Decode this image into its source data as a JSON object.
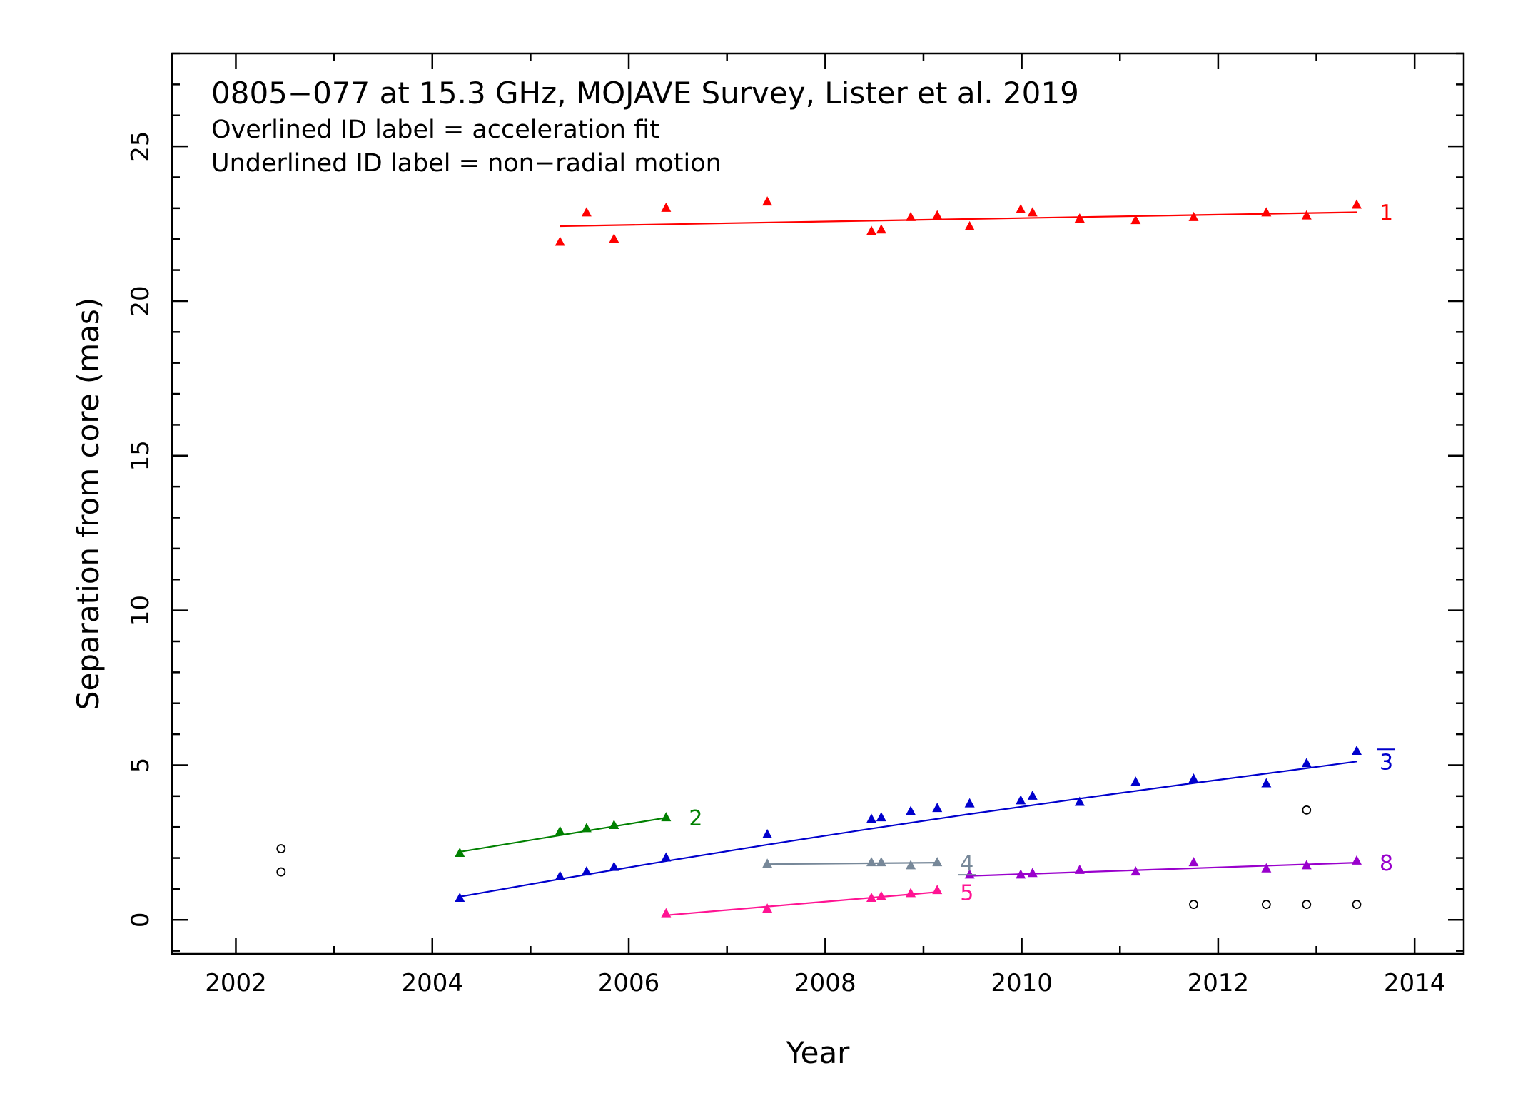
{
  "chart_data": {
    "type": "scatter",
    "header": {
      "title": "0805−077 at 15.3 GHz, MOJAVE Survey, Lister et al. 2019",
      "line1": "Overlined ID label = acceleration fit",
      "line2": "Underlined ID label = non−radial motion"
    },
    "xlabel": "Year",
    "ylabel": "Separation from core (mas)",
    "xlim": [
      2001.35,
      2014.5
    ],
    "ylim": [
      -1.1,
      28.0
    ],
    "xticks": [
      2002,
      2004,
      2006,
      2008,
      2010,
      2012,
      2014
    ],
    "yticks": [
      0,
      5,
      10,
      15,
      20,
      25
    ],
    "grid": false,
    "series": [
      {
        "name": "1",
        "color": "#ff0000",
        "label_style": "plain",
        "x": [
          2005.3,
          2005.57,
          2005.85,
          2006.38,
          2007.41,
          2008.47,
          2008.57,
          2008.87,
          2009.14,
          2009.47,
          2009.99,
          2010.11,
          2010.59,
          2011.16,
          2011.75,
          2012.49,
          2012.9,
          2013.41
        ],
        "y": [
          21.9,
          22.85,
          22.0,
          23.0,
          23.2,
          22.25,
          22.3,
          22.7,
          22.75,
          22.4,
          22.95,
          22.85,
          22.65,
          22.6,
          22.7,
          22.85,
          22.75,
          23.1
        ],
        "fit": [
          [
            2005.3,
            22.42
          ],
          [
            2013.41,
            22.87
          ]
        ]
      },
      {
        "name": "2",
        "color": "#008000",
        "label_style": "plain",
        "x": [
          2004.28,
          2005.3,
          2005.57,
          2005.85,
          2006.38
        ],
        "y": [
          2.15,
          2.85,
          2.95,
          3.05,
          3.3
        ],
        "fit": [
          [
            2004.28,
            2.2
          ],
          [
            2006.38,
            3.3
          ]
        ]
      },
      {
        "name": "3",
        "color": "#0000cc",
        "label_style": "overline",
        "x": [
          2004.28,
          2005.3,
          2005.57,
          2005.85,
          2006.38,
          2007.41,
          2008.47,
          2008.57,
          2008.87,
          2009.14,
          2009.47,
          2009.99,
          2010.11,
          2010.59,
          2011.16,
          2011.75,
          2012.49,
          2012.9,
          2013.41
        ],
        "y": [
          0.7,
          1.4,
          1.55,
          1.7,
          2.0,
          2.75,
          3.25,
          3.3,
          3.5,
          3.6,
          3.75,
          3.85,
          4.0,
          3.8,
          4.45,
          4.55,
          4.4,
          5.05,
          5.45
        ],
        "fit": [
          [
            2004.28,
            0.75
          ],
          [
            2005.3,
            1.32
          ],
          [
            2006.38,
            1.9
          ],
          [
            2007.41,
            2.43
          ],
          [
            2008.47,
            2.95
          ],
          [
            2009.47,
            3.42
          ],
          [
            2010.59,
            3.92
          ],
          [
            2011.75,
            4.42
          ],
          [
            2012.9,
            4.9
          ],
          [
            2013.41,
            5.12
          ]
        ]
      },
      {
        "name": "4",
        "color": "#778899",
        "label_style": "underline",
        "x": [
          2007.41,
          2008.47,
          2008.57,
          2008.87,
          2009.14
        ],
        "y": [
          1.8,
          1.85,
          1.85,
          1.75,
          1.85
        ],
        "fit": [
          [
            2007.41,
            1.8
          ],
          [
            2009.14,
            1.85
          ]
        ]
      },
      {
        "name": "5",
        "color": "#ff1493",
        "label_style": "plain",
        "x": [
          2006.38,
          2007.41,
          2008.47,
          2008.57,
          2008.87,
          2009.14
        ],
        "y": [
          0.2,
          0.35,
          0.7,
          0.75,
          0.85,
          0.95
        ],
        "fit": [
          [
            2006.38,
            0.15
          ],
          [
            2009.14,
            0.9
          ]
        ]
      },
      {
        "name": "8",
        "color": "#9900cc",
        "label_style": "plain",
        "x": [
          2009.47,
          2009.99,
          2010.11,
          2010.59,
          2011.16,
          2011.75,
          2012.49,
          2012.9,
          2013.41
        ],
        "y": [
          1.45,
          1.45,
          1.5,
          1.6,
          1.55,
          1.85,
          1.65,
          1.75,
          1.9
        ],
        "fit": [
          [
            2009.47,
            1.42
          ],
          [
            2013.41,
            1.85
          ]
        ]
      }
    ],
    "unassigned": {
      "color": "#000000",
      "x": [
        2002.46,
        2002.46,
        2011.75,
        2012.49,
        2012.9,
        2012.9,
        2013.41
      ],
      "y": [
        2.3,
        1.55,
        0.5,
        0.5,
        0.5,
        3.55,
        0.5
      ]
    }
  }
}
